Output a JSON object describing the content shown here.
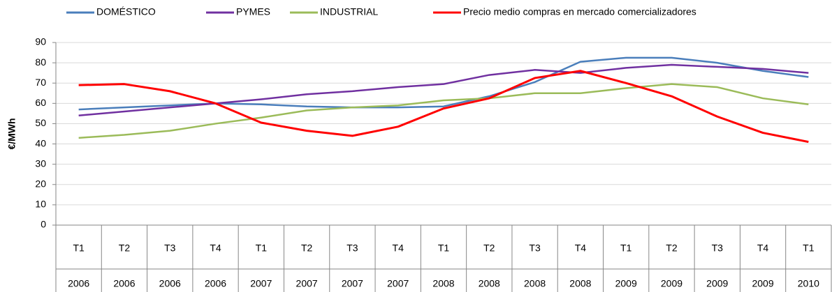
{
  "chart_data": {
    "type": "line",
    "y_label": "€/MWh",
    "categories": [
      "T1",
      "T2",
      "T3",
      "T4",
      "T1",
      "T2",
      "T3",
      "T4",
      "T1",
      "T2",
      "T3",
      "T4",
      "T1",
      "T2",
      "T3",
      "T4",
      "T1"
    ],
    "category_years": [
      "2006",
      "2006",
      "2006",
      "2006",
      "2007",
      "2007",
      "2007",
      "2007",
      "2008",
      "2008",
      "2008",
      "2008",
      "2009",
      "2009",
      "2009",
      "2009",
      "2010"
    ],
    "series": [
      {
        "name": "DOMÉSTICO",
        "color": "#4a7ebb",
        "values": [
          57,
          58,
          59,
          60,
          59.5,
          58.5,
          58,
          58,
          58.5,
          63.5,
          70.5,
          80.5,
          82.5,
          82.5,
          80,
          76,
          73
        ]
      },
      {
        "name": "PYMES",
        "color": "#7030a0",
        "values": [
          54,
          56,
          58,
          60,
          62,
          64.5,
          66,
          68,
          69.5,
          74,
          76.5,
          75,
          77.5,
          79,
          78,
          77,
          75
        ]
      },
      {
        "name": "INDUSTRIAL",
        "color": "#9bbb59",
        "values": [
          43,
          44.5,
          46.5,
          50,
          53,
          56.5,
          58,
          59,
          61.5,
          62.5,
          65,
          65,
          67.5,
          69.5,
          68,
          62.5,
          59.5
        ]
      },
      {
        "name": "Precio medio compras en mercado comercializadores",
        "color": "#ff0000",
        "values": [
          69,
          69.5,
          66,
          60,
          50.5,
          46.5,
          44,
          48.5,
          57.5,
          62.5,
          72.5,
          76,
          70,
          63.5,
          53.5,
          45.5,
          41
        ]
      }
    ],
    "ylim": [
      0,
      90
    ],
    "yticks": [
      0,
      10,
      20,
      30,
      40,
      50,
      60,
      70,
      80,
      90
    ],
    "grid": true,
    "legend": "top"
  }
}
